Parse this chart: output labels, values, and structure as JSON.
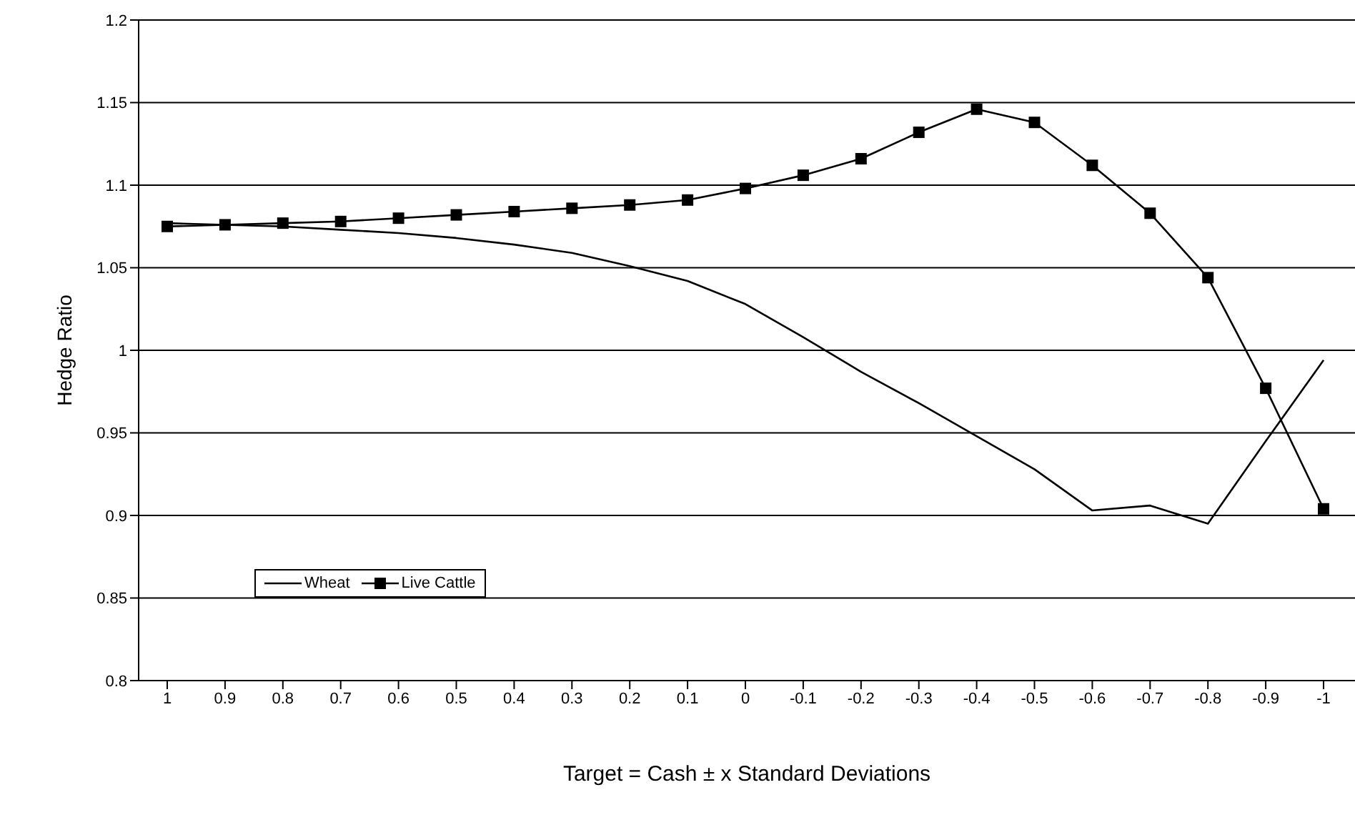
{
  "chart_data": {
    "type": "line",
    "xlabel": "Target = Cash ± x Standard Deviations",
    "ylabel": "Hedge Ratio",
    "categories": [
      "1",
      "0.9",
      "0.8",
      "0.7",
      "0.6",
      "0.5",
      "0.4",
      "0.3",
      "0.2",
      "0.1",
      "0",
      "-0.1",
      "-0.2",
      "-0.3",
      "-0.4",
      "-0.5",
      "-0.6",
      "-0.7",
      "-0.8",
      "-0.9",
      "-1"
    ],
    "series": [
      {
        "name": "Wheat",
        "color": "#000000",
        "marker": "none",
        "values": [
          1.077,
          1.076,
          1.075,
          1.073,
          1.071,
          1.068,
          1.064,
          1.059,
          1.051,
          1.042,
          1.028,
          1.008,
          0.987,
          0.968,
          0.948,
          0.928,
          0.903,
          0.906,
          0.895,
          0.945,
          0.994
        ]
      },
      {
        "name": "Live Cattle",
        "color": "#000000",
        "marker": "square",
        "values": [
          1.075,
          1.076,
          1.077,
          1.078,
          1.08,
          1.082,
          1.084,
          1.086,
          1.088,
          1.091,
          1.098,
          1.106,
          1.116,
          1.132,
          1.146,
          1.138,
          1.112,
          1.083,
          1.044,
          0.977,
          0.904
        ]
      }
    ],
    "ylim": [
      0.8,
      1.2
    ],
    "yticks": [
      0.8,
      0.85,
      0.9,
      0.95,
      1,
      1.05,
      1.1,
      1.15,
      1.2
    ],
    "grid": "y",
    "legend": "bottom left",
    "line_style": "solid"
  }
}
